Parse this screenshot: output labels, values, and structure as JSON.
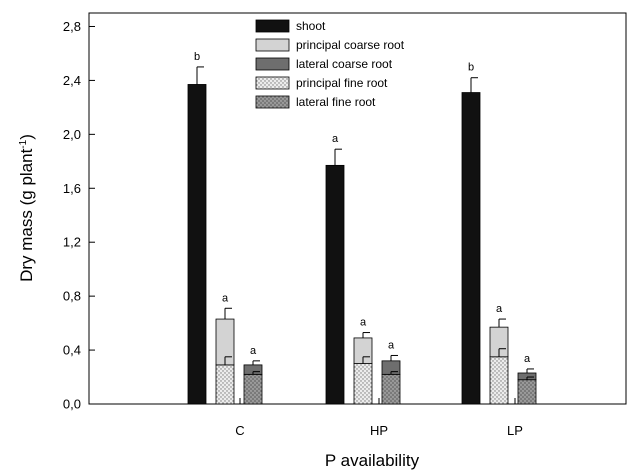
{
  "chart_data": {
    "type": "bar",
    "xlabel": "P availability",
    "ylabel_main": "Dry mass (g plant",
    "ylabel_sup": "-1",
    "ylabel_end": ")",
    "ylim": [
      0,
      2.9
    ],
    "yticks": [
      0.0,
      0.4,
      0.8,
      1.2,
      1.6,
      2.0,
      2.4,
      2.8
    ],
    "ytick_labels": [
      "0,0",
      "0,4",
      "0,8",
      "1,2",
      "1,6",
      "2,0",
      "2,4",
      "2,8"
    ],
    "categories": [
      "C",
      "HP",
      "LP"
    ],
    "legend": [
      {
        "name": "shoot",
        "color": "#111111",
        "pattern": "solid"
      },
      {
        "name": "principal coarse root",
        "color": "#d3d3d3",
        "pattern": "solid"
      },
      {
        "name": "lateral coarse root",
        "color": "#6e6e6e",
        "pattern": "solid"
      },
      {
        "name": "principal fine root",
        "color": "#ececec",
        "pattern": "dots-dark"
      },
      {
        "name": "lateral fine root",
        "color": "#7a7a7a",
        "pattern": "dots-light"
      }
    ],
    "shoot": {
      "values": [
        2.37,
        1.77,
        2.31
      ],
      "errors": [
        0.13,
        0.12,
        0.11
      ],
      "letters": [
        "b",
        "a",
        "b"
      ]
    },
    "principal_root": {
      "fine": [
        0.29,
        0.3,
        0.35
      ],
      "fine_errors": [
        0.06,
        0.05,
        0.06
      ],
      "total": [
        0.63,
        0.49,
        0.57
      ],
      "total_errors": [
        0.08,
        0.04,
        0.06
      ],
      "letters": [
        "a",
        "a",
        "a"
      ]
    },
    "lateral_root": {
      "fine": [
        0.22,
        0.22,
        0.18
      ],
      "fine_errors": [
        0.02,
        0.02,
        0.02
      ],
      "total": [
        0.29,
        0.32,
        0.23
      ],
      "total_errors": [
        0.03,
        0.04,
        0.03
      ],
      "letters": [
        "a",
        "a",
        "a"
      ]
    }
  }
}
